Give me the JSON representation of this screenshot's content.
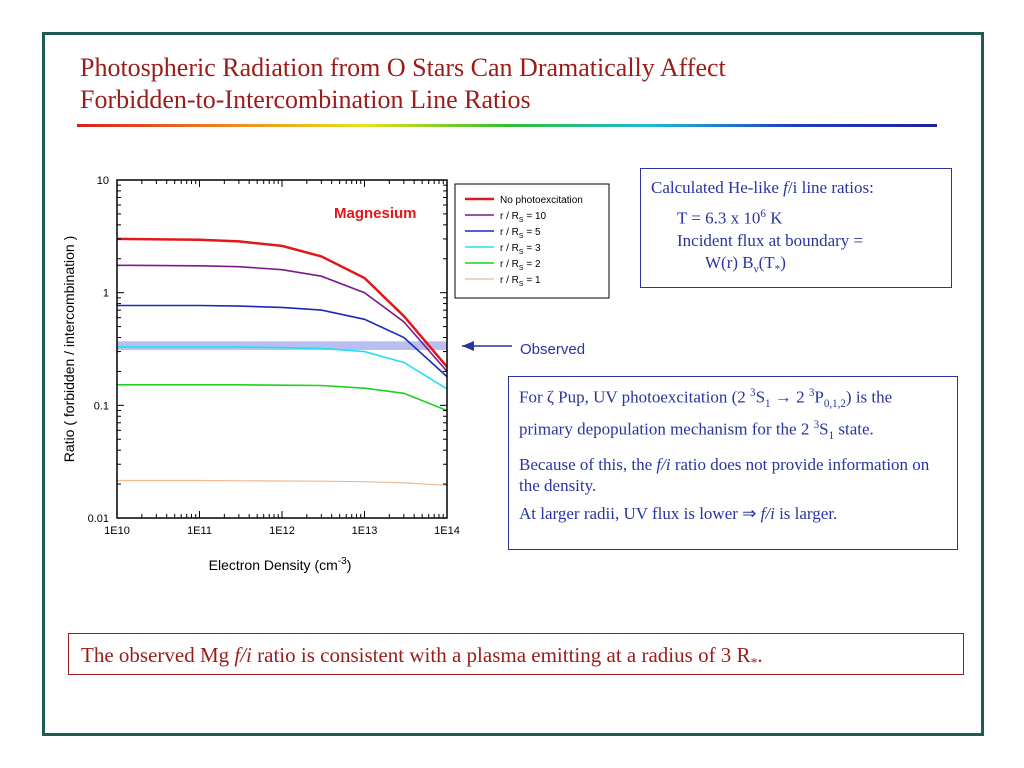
{
  "slide": {
    "title_line1": "Photospheric Radiation from O Stars Can Dramatically Affect",
    "title_line2": "Forbidden-to-Intercombination Line Ratios",
    "box1": {
      "line1_pre": "Calculated He-like ",
      "line1_f": "f",
      "line1_post": "/i line ratios:",
      "line2_pre": "T = 6.3 x 10",
      "line2_sup": "6",
      "line2_post": " K",
      "line3": "Incident flux at boundary =",
      "line4_pre": "W(r)  B",
      "line4_sub": "ν",
      "line4_post": "(T",
      "line4_sub2": "*",
      "line4_end": ")"
    },
    "box2": {
      "p1_a": "For ζ Pup, UV photoexcitation (2 ",
      "p1_sup1": "3",
      "p1_b": "S",
      "p1_sub1": "1",
      "p1_c": " → 2 ",
      "p1_sup2": "3",
      "p1_d": "P",
      "p1_sub2": "0,1,2",
      "p1_e": ") is the primary depopulation mechanism for the 2 ",
      "p1_sup3": "3",
      "p1_f": "S",
      "p1_sub3": "1",
      "p1_g": " state.",
      "p2_a": "Because of this, the ",
      "p2_fi": "f/i",
      "p2_b": " ratio does not provide information on the density.",
      "p3_a": "At larger radii, UV flux is lower  ⇒  ",
      "p3_fi": "f/i",
      "p3_b": " is larger."
    },
    "box3": {
      "a": "The observed Mg ",
      "fi": "f/i",
      "b": " ratio is consistent with a plasma emitting at a radius of 3 R",
      "sub": "*",
      "c": "."
    }
  },
  "chart_data": {
    "type": "line",
    "xscale": "log",
    "yscale": "log",
    "xlim": [
      10000000000.0,
      100000000000000.0
    ],
    "ylim": [
      0.01,
      10
    ],
    "xticks": [
      "1E10",
      "1E11",
      "1E12",
      "1E13",
      "1E14"
    ],
    "yticks": [
      "10",
      "1",
      "0.1",
      "0.01"
    ],
    "ylabel": "Ratio ( forbidden / intercombination )",
    "xlabel_base": "Electron Density (cm",
    "xlabel_sup": "-3",
    "xlabel_end": ")",
    "annotation": "Magnesium",
    "observed_label": "Observed",
    "observed_band": [
      0.31,
      0.37
    ],
    "legend_position": "top-right",
    "x": [
      10000000000.0,
      100000000000.0,
      300000000000.0,
      1000000000000.0,
      3000000000000.0,
      10000000000000.0,
      30000000000000.0,
      100000000000000.0
    ],
    "series": [
      {
        "name": "No photoexcitation",
        "label_pre": "No photoexcitation",
        "label_sub": "",
        "label_post": "",
        "color": "#e01818",
        "width": 2.5,
        "values": [
          3.0,
          2.95,
          2.85,
          2.6,
          2.1,
          1.35,
          0.62,
          0.22
        ]
      },
      {
        "name": "r / Rs = 10",
        "label_pre": "r / R",
        "label_sub": "S",
        "label_post": " = 10",
        "color": "#7a1a8a",
        "width": 1.6,
        "values": [
          1.75,
          1.73,
          1.7,
          1.6,
          1.4,
          1.0,
          0.55,
          0.2
        ]
      },
      {
        "name": "r / Rs = 5",
        "label_pre": "r / R",
        "label_sub": "S",
        "label_post": " = 5",
        "color": "#1a2ab8",
        "width": 1.6,
        "values": [
          0.77,
          0.77,
          0.76,
          0.74,
          0.7,
          0.58,
          0.4,
          0.18
        ]
      },
      {
        "name": "r / Rs = 3",
        "label_pre": "r / R",
        "label_sub": "S",
        "label_post": " = 3",
        "color": "#20e0f0",
        "width": 1.6,
        "values": [
          0.33,
          0.33,
          0.33,
          0.325,
          0.32,
          0.3,
          0.24,
          0.14
        ]
      },
      {
        "name": "r / Rs = 2",
        "label_pre": "r / R",
        "label_sub": "S",
        "label_post": " = 2",
        "color": "#20d020",
        "width": 1.6,
        "values": [
          0.152,
          0.152,
          0.152,
          0.151,
          0.15,
          0.142,
          0.128,
          0.09
        ]
      },
      {
        "name": "r / Rs = 1",
        "label_pre": "r / R",
        "label_sub": "S",
        "label_post": " = 1",
        "color": "#f0b890",
        "width": 1.2,
        "values": [
          0.0215,
          0.0215,
          0.0214,
          0.0213,
          0.0212,
          0.021,
          0.0205,
          0.0195
        ]
      }
    ]
  }
}
